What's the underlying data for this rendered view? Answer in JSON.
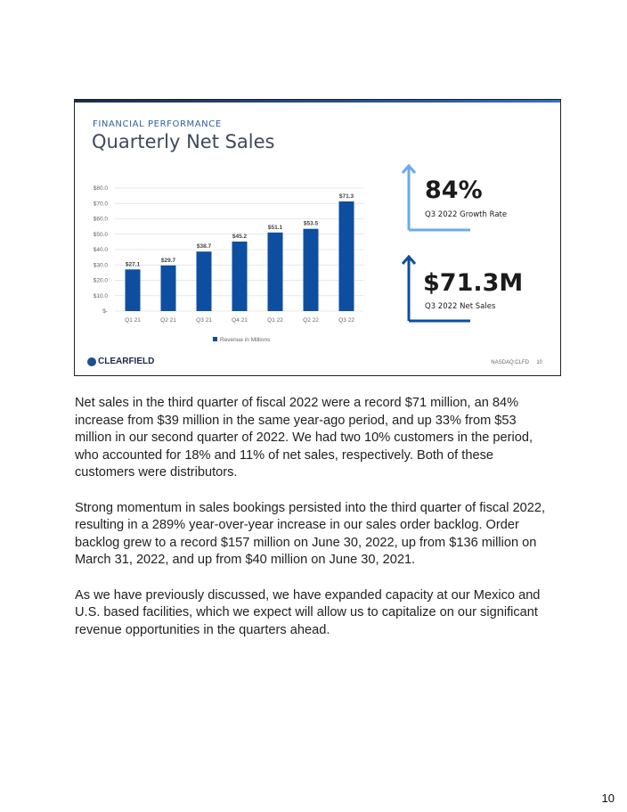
{
  "slide": {
    "kicker": "FINANCIAL PERFORMANCE",
    "title": "Quarterly Net Sales",
    "kpis": [
      {
        "value": "84%",
        "label": "Q3 2022 Growth Rate",
        "color": "#6aaaf0"
      },
      {
        "value": "$71.3M",
        "label": "Q3 2022 Net Sales",
        "color": "#0d4ea0"
      }
    ],
    "logo": "CLEARFIELD",
    "ticker": "NASDAQ:CLFD",
    "slide_number": "10"
  },
  "chart_data": {
    "type": "bar",
    "categories": [
      "Q1 21",
      "Q2 21",
      "Q3 21",
      "Q4 21",
      "Q1 22",
      "Q2 22",
      "Q3 22"
    ],
    "values": [
      27.1,
      29.7,
      38.7,
      45.2,
      51.1,
      53.5,
      71.3
    ],
    "data_labels": [
      "$27.1",
      "$29.7",
      "$38.7",
      "$45.2",
      "$51.1",
      "$53.5",
      "$71.3"
    ],
    "yticks": [
      "$-",
      "$10.0",
      "$20.0",
      "$30.0",
      "$40.0",
      "$50.0",
      "$60.0",
      "$70.0",
      "$80.0"
    ],
    "ylim": [
      0,
      80
    ],
    "legend": "Revenue in Millions",
    "legend_position": "bottom",
    "bar_color": "#0d4ea0",
    "grid": true
  },
  "body": {
    "paragraphs": [
      "Net sales in the third quarter of fiscal 2022 were a record $71 million, an 84% increase from $39 million in the same year-ago period, and up 33% from $53 million in our second quarter of 2022. We had two 10% customers in the period, who accounted for 18% and 11% of net sales, respectively. Both of these customers were distributors.",
      "Strong momentum in sales bookings persisted into the third quarter of fiscal 2022, resulting in a 289% year-over-year increase in our sales order backlog. Order backlog grew to a record $157 million on June 30, 2022, up from $136 million on March 31, 2022, and up from $40 million on June 30, 2021.",
      "As we have previously discussed, we have expanded capacity at our Mexico and U.S. based facilities, which we expect will allow us to capitalize on our significant revenue opportunities in the quarters ahead."
    ]
  },
  "page_number": "10"
}
